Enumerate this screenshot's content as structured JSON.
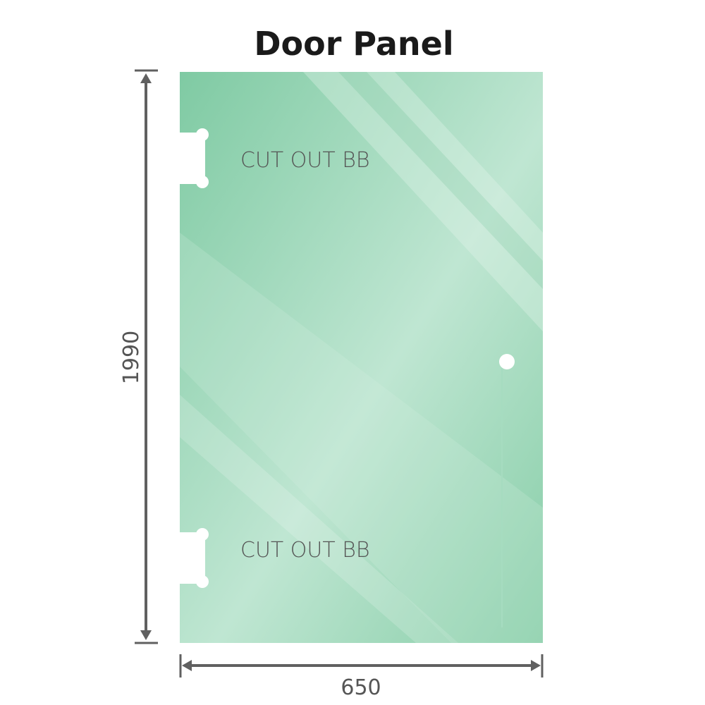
{
  "title": "Door Panel",
  "cutouts": [
    {
      "label": "CUT OUT BB"
    },
    {
      "label": "CUT OUT BB"
    }
  ],
  "dimensions": {
    "height": "1990",
    "width": "650"
  },
  "colors": {
    "glass": "#8fd0ad",
    "glass_light": "#bde6d1",
    "dimension_line": "#606060",
    "text": "#555555"
  }
}
